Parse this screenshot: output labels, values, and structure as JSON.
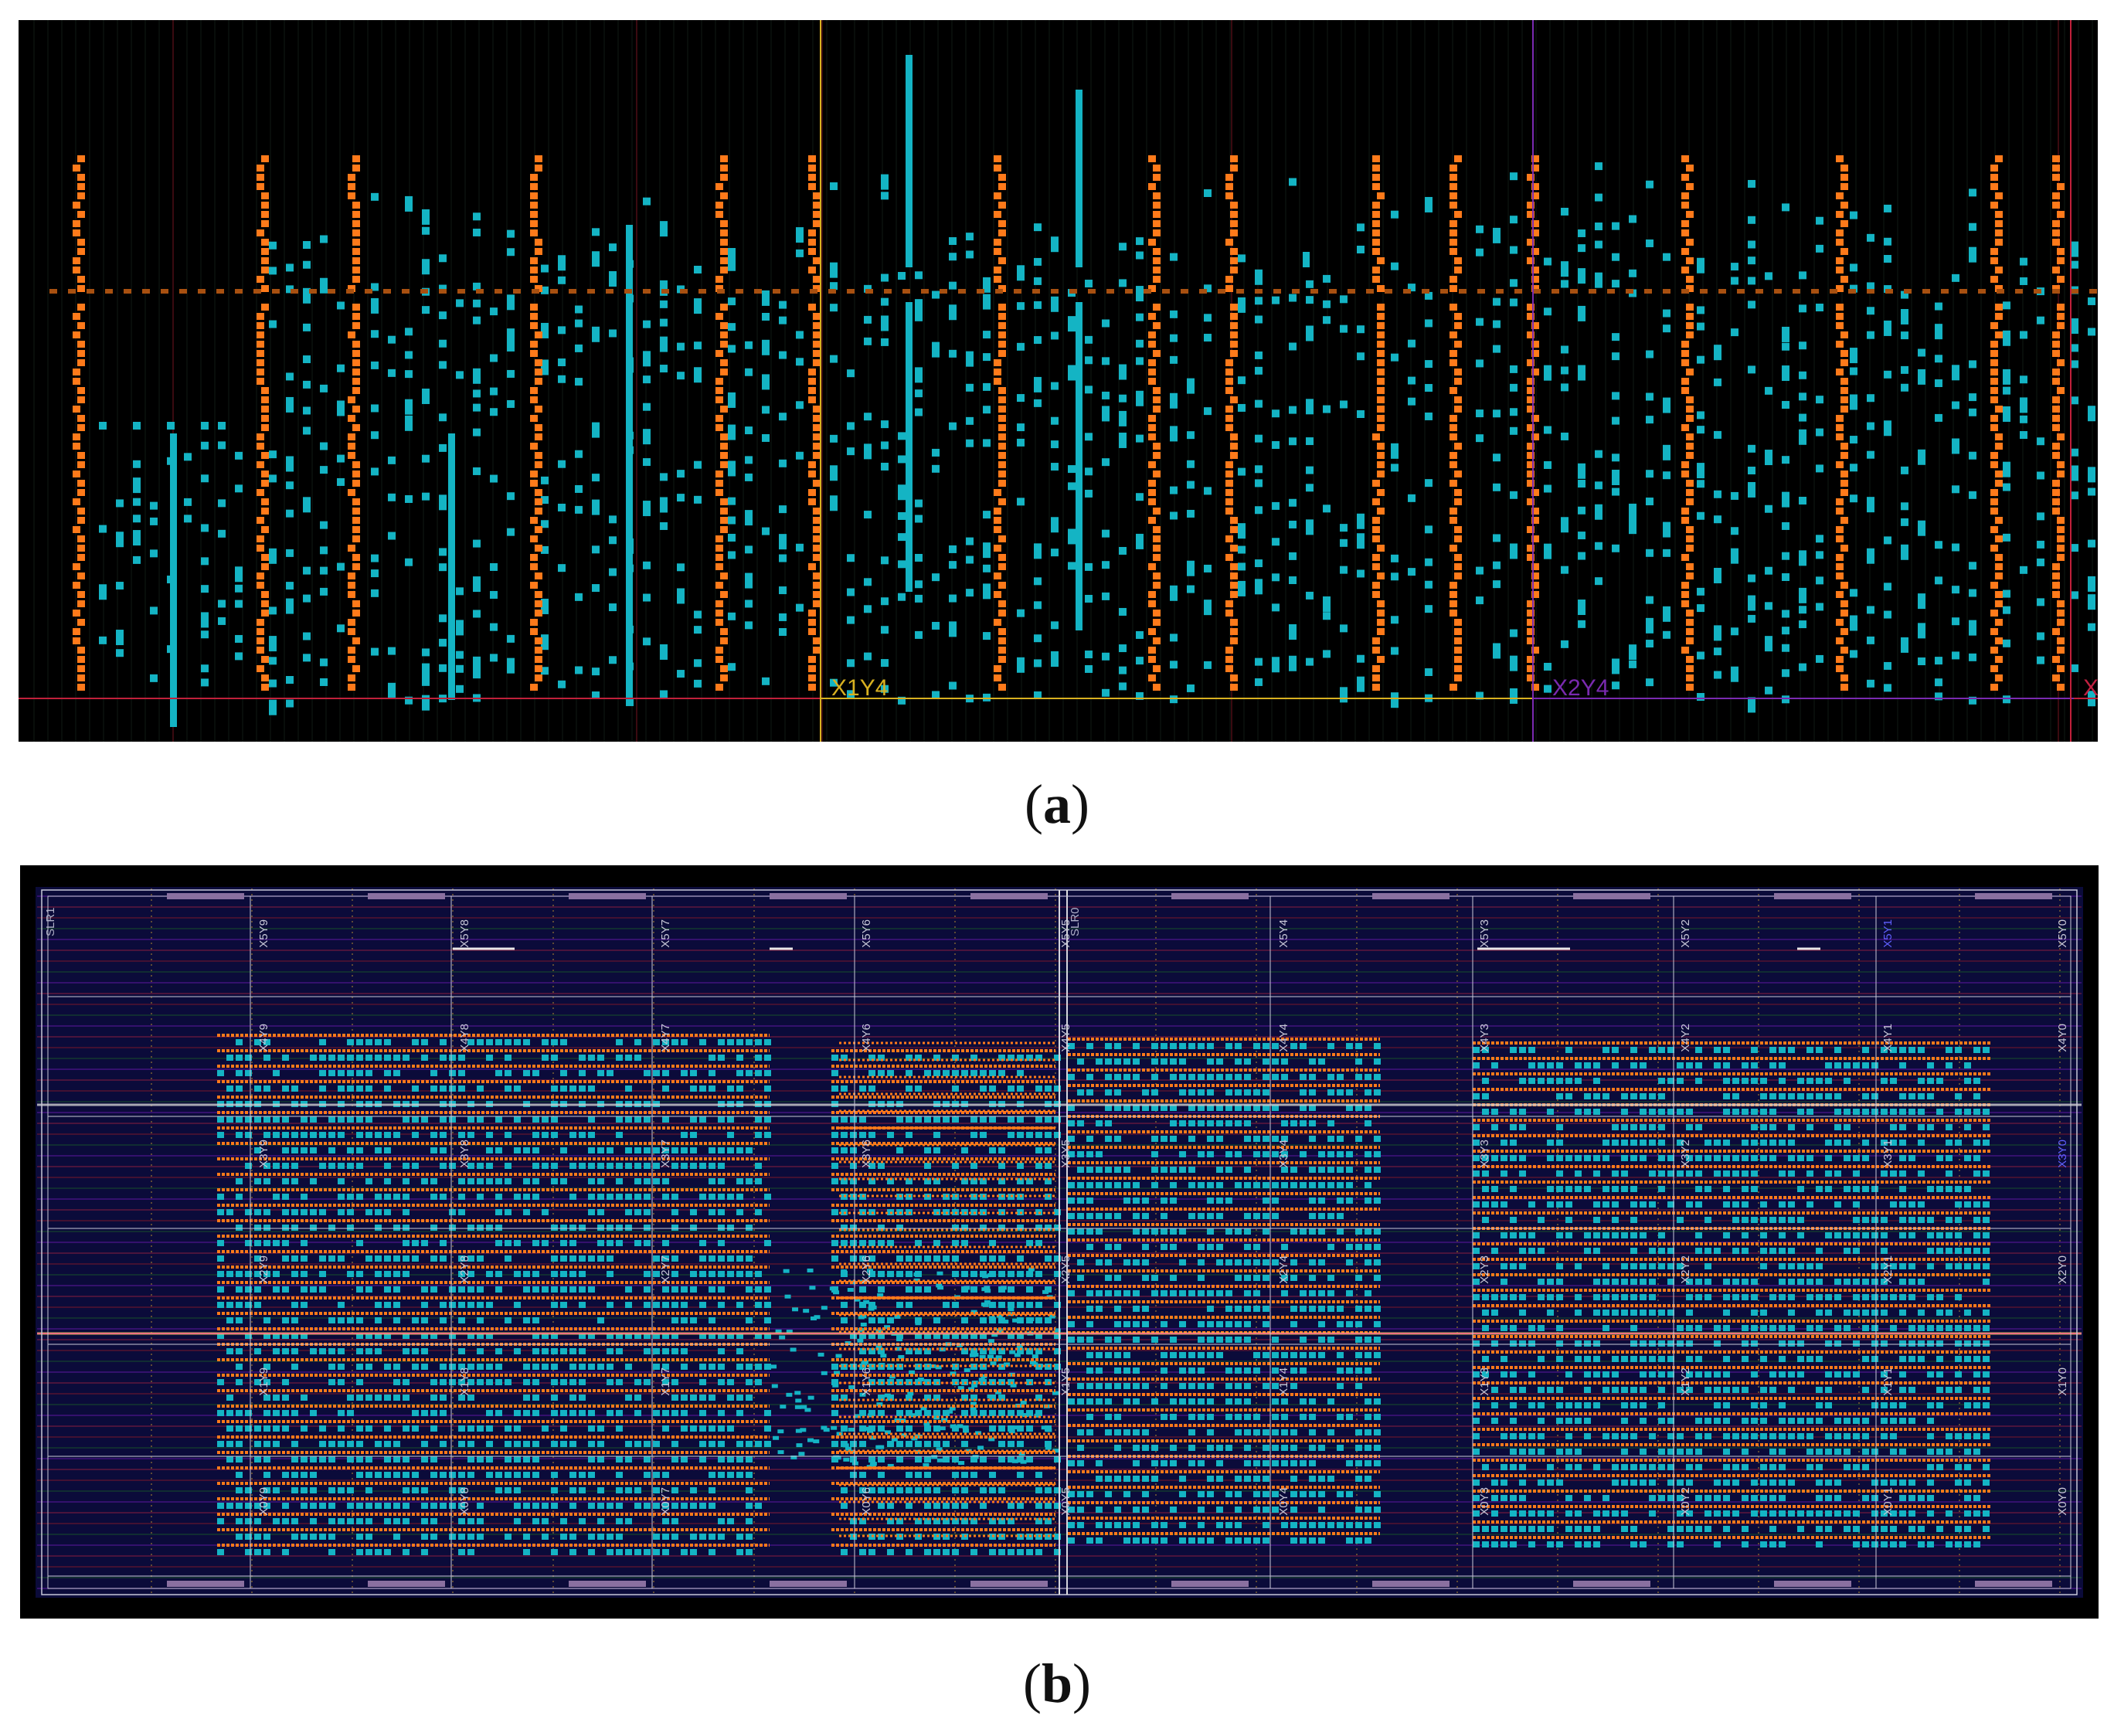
{
  "captions": {
    "a": "(a)",
    "b": "(b)"
  },
  "panel_a": {
    "clock_region_labels": [
      {
        "text": "X1Y4",
        "color": "#d8b020"
      },
      {
        "text": "X2Y4",
        "color": "#7a2ab0"
      },
      {
        "text": "X",
        "color": "#c02040"
      }
    ]
  },
  "panel_b": {
    "slr_labels": [
      "SLR1",
      "SLR0"
    ],
    "top_row_labels": [
      "X5Y9",
      "X5Y8",
      "X5Y7",
      "X5Y6",
      "X5Y5",
      "X5Y4",
      "X5Y3",
      "X5Y2",
      "X5Y1",
      "X5Y0"
    ],
    "row4_labels": [
      "X4Y9",
      "X4Y8",
      "X4Y7",
      "X4Y6",
      "X4Y5",
      "X4Y4",
      "X4Y3",
      "X4Y2",
      "X4Y1",
      "X4Y0"
    ],
    "row3_labels": [
      "X3Y9",
      "X3Y8",
      "X3Y7",
      "X3Y6",
      "X3Y5",
      "X3Y4",
      "X3Y3",
      "X3Y2",
      "X3Y1",
      "X3Y0"
    ],
    "row2_labels": [
      "X2Y9",
      "X2Y8",
      "X2Y7",
      "X2Y6",
      "X2Y5",
      "X2Y4",
      "X2Y3",
      "X2Y2",
      "X2Y1",
      "X2Y0"
    ],
    "row1_labels": [
      "X1Y9",
      "X1Y8",
      "X1Y7",
      "X1Y6",
      "X1Y5",
      "X1Y4",
      "X1Y3",
      "X1Y2",
      "X1Y1",
      "X1Y0"
    ],
    "bottom_row_labels": [
      "X0Y9",
      "X0Y8",
      "X0Y7",
      "X0Y6",
      "X0Y5",
      "X0Y4",
      "X0Y3",
      "X0Y2",
      "X0Y1",
      "X0Y0"
    ]
  },
  "colors": {
    "background": "#000000",
    "device_bg": "#0b0b3a",
    "cell_orange": "#ff7a1a",
    "cell_cyan": "#14b4c4",
    "region_grid": "#c8c8d8",
    "red_line": "#c0203a"
  }
}
